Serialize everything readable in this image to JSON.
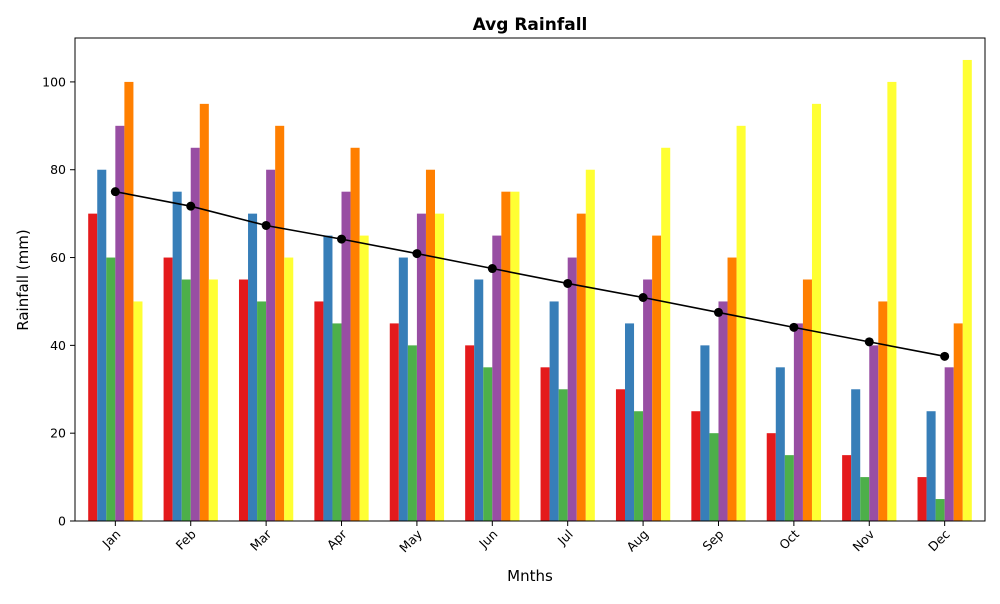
{
  "chart_data": {
    "type": "bar",
    "title": "Avg Rainfall",
    "xlabel": "Mnths",
    "ylabel": "Rainfall (mm)",
    "ylim": [
      0,
      110
    ],
    "yticks": [
      0,
      20,
      40,
      60,
      80,
      100
    ],
    "grid": false,
    "legend": "none",
    "categories": [
      "Jan",
      "Feb",
      "Mar",
      "Apr",
      "May",
      "Jun",
      "Jul",
      "Aug",
      "Sep",
      "Oct",
      "Nov",
      "Dec"
    ],
    "series": [
      {
        "color": "#e41a1c",
        "values": [
          70,
          60,
          55,
          50,
          45,
          40,
          35,
          30,
          25,
          20,
          15,
          10
        ]
      },
      {
        "color": "#377eb8",
        "values": [
          80,
          75,
          70,
          65,
          60,
          55,
          50,
          45,
          40,
          35,
          30,
          25
        ]
      },
      {
        "color": "#4daf4a",
        "values": [
          60,
          55,
          50,
          45,
          40,
          35,
          30,
          25,
          20,
          15,
          10,
          5
        ]
      },
      {
        "color": "#984ea3",
        "values": [
          90,
          85,
          80,
          75,
          70,
          65,
          60,
          55,
          50,
          45,
          40,
          35
        ]
      },
      {
        "color": "#ff7f00",
        "values": [
          100,
          95,
          90,
          85,
          80,
          75,
          70,
          65,
          60,
          55,
          50,
          45
        ]
      },
      {
        "color": "#ffff33",
        "values": [
          50,
          55,
          60,
          65,
          70,
          75,
          80,
          85,
          90,
          95,
          100,
          105
        ]
      }
    ],
    "line": {
      "type": "line",
      "color": "#000000",
      "marker": "circle",
      "values": [
        75,
        71.7,
        67.3,
        64.2,
        60.9,
        57.5,
        54.1,
        50.9,
        47.5,
        44.1,
        40.8,
        37.5
      ]
    }
  }
}
